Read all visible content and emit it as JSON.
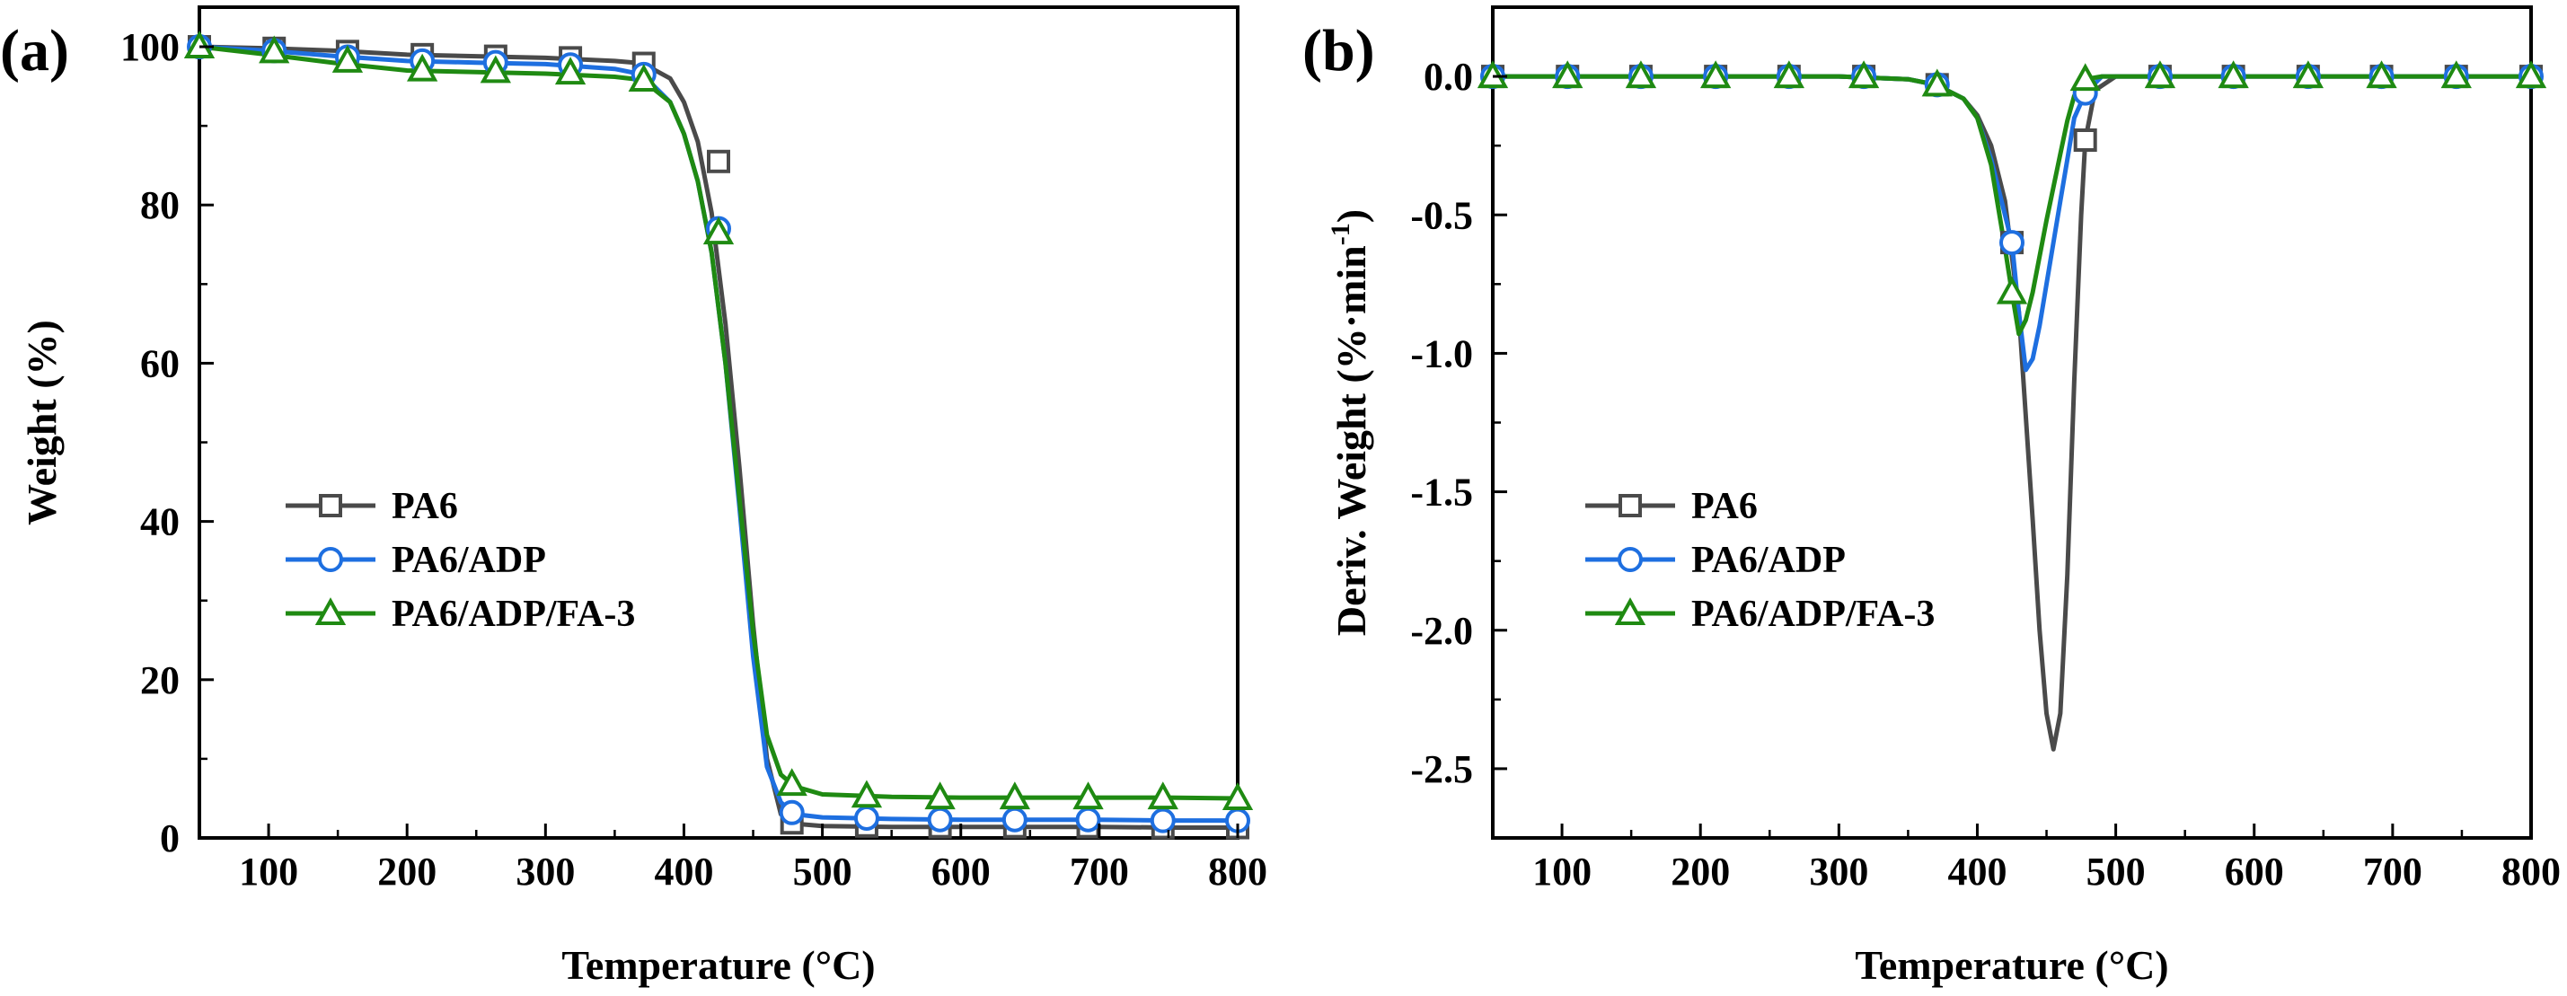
{
  "colors": {
    "PA6": "#4a4a4a",
    "PA6/ADP": "#1e6fe0",
    "PA6/ADP/FA-3": "#1f8a12"
  },
  "chart_data": [
    {
      "type": "line",
      "panel_label": "(a)",
      "title": "",
      "xlabel": "Temperature (°C)",
      "ylabel": "Weight (%)",
      "xlim": [
        50,
        800
      ],
      "ylim": [
        0,
        105
      ],
      "xticks": [
        100,
        200,
        300,
        400,
        500,
        600,
        700,
        800
      ],
      "yticks": [
        0,
        20,
        40,
        60,
        80,
        100
      ],
      "xtick_labels": [
        "100",
        "200",
        "300",
        "400",
        "500",
        "600",
        "700",
        "800"
      ],
      "ytick_labels": [
        "0",
        "20",
        "40",
        "60",
        "80",
        "100"
      ],
      "legend_position": "middle-left",
      "series": [
        {
          "name": "PA6",
          "color": "#4a4a4a",
          "marker": "square",
          "x": [
            50,
            100,
            150,
            200,
            250,
            300,
            350,
            370,
            390,
            400,
            410,
            420,
            430,
            440,
            450,
            460,
            470,
            480,
            500,
            550,
            600,
            650,
            700,
            750,
            800
          ],
          "y": [
            100,
            99.8,
            99.5,
            99,
            98.8,
            98.6,
            98.2,
            97.9,
            96,
            93,
            88,
            79,
            65,
            47,
            27,
            10,
            3,
            1.8,
            1.5,
            1.4,
            1.4,
            1.4,
            1.4,
            1.3,
            1.3
          ],
          "marker_x": [
            50,
            104,
            157,
            211,
            264,
            318,
            371,
            425,
            478,
            532,
            585,
            639,
            692,
            746,
            800
          ],
          "marker_y": [
            100,
            99.8,
            99.4,
            99,
            98.8,
            98.6,
            97.9,
            85.5,
            1.9,
            1.5,
            1.4,
            1.4,
            1.4,
            1.3,
            1.3
          ]
        },
        {
          "name": "PA6/ADP",
          "color": "#1e6fe0",
          "marker": "circle",
          "x": [
            50,
            100,
            150,
            200,
            250,
            300,
            350,
            370,
            390,
            400,
            410,
            420,
            430,
            440,
            450,
            460,
            470,
            480,
            500,
            550,
            600,
            650,
            700,
            750,
            800
          ],
          "y": [
            100,
            99.5,
            98.8,
            98.2,
            98,
            97.8,
            97.2,
            96.5,
            93,
            89,
            83,
            74,
            60,
            42,
            23,
            9,
            4.5,
            3,
            2.6,
            2.4,
            2.3,
            2.3,
            2.3,
            2.2,
            2.2
          ],
          "marker_x": [
            50,
            104,
            157,
            211,
            264,
            318,
            371,
            425,
            478,
            532,
            585,
            639,
            692,
            746,
            800
          ],
          "marker_y": [
            100,
            99.5,
            98.7,
            98.2,
            98,
            97.7,
            96.5,
            77,
            3.2,
            2.5,
            2.3,
            2.3,
            2.3,
            2.2,
            2.2
          ]
        },
        {
          "name": "PA6/ADP/FA-3",
          "color": "#1f8a12",
          "marker": "triangle",
          "x": [
            50,
            100,
            150,
            200,
            250,
            300,
            350,
            370,
            390,
            400,
            410,
            420,
            430,
            440,
            450,
            460,
            470,
            480,
            500,
            550,
            600,
            650,
            700,
            750,
            800
          ],
          "y": [
            100,
            99,
            97.9,
            97,
            96.8,
            96.6,
            96.2,
            95.8,
            93,
            89,
            83,
            74,
            60,
            43,
            26,
            13,
            8,
            6.5,
            5.5,
            5.2,
            5.1,
            5.1,
            5.1,
            5.1,
            5
          ],
          "marker_x": [
            50,
            104,
            157,
            211,
            264,
            318,
            371,
            425,
            478,
            532,
            585,
            639,
            692,
            746,
            800
          ],
          "marker_y": [
            100,
            99.4,
            98.2,
            97.1,
            96.9,
            96.7,
            95.8,
            76.5,
            6.8,
            5.3,
            5.1,
            5.1,
            5.1,
            5.1,
            5
          ]
        }
      ]
    },
    {
      "type": "line",
      "panel_label": "(b)",
      "title": "",
      "xlabel": "Temperature (°C)",
      "ylabel": "Deriv. Weight (%·min",
      "ylabel_superscript": "-1",
      "ylabel_suffix": ")",
      "xlim": [
        50,
        800
      ],
      "ylim": [
        -2.75,
        0.25
      ],
      "xticks": [
        100,
        200,
        300,
        400,
        500,
        600,
        700,
        800
      ],
      "yticks": [
        0,
        -0.5,
        -1,
        -1.5,
        -2,
        -2.5
      ],
      "xtick_labels": [
        "100",
        "200",
        "300",
        "400",
        "500",
        "600",
        "700",
        "800"
      ],
      "ytick_labels": [
        "0.0",
        "-0.5",
        "-1.0",
        "-1.5",
        "-2.0",
        "-2.5"
      ],
      "legend_position": "middle-left",
      "series": [
        {
          "name": "PA6",
          "color": "#4a4a4a",
          "marker": "square",
          "x": [
            50,
            100,
            150,
            200,
            250,
            300,
            350,
            370,
            390,
            400,
            410,
            420,
            430,
            440,
            445,
            450,
            455,
            460,
            465,
            470,
            475,
            478,
            485,
            500,
            550,
            600,
            650,
            700,
            750,
            800
          ],
          "y": [
            0,
            0,
            0,
            0,
            0,
            0,
            -0.01,
            -0.03,
            -0.08,
            -0.14,
            -0.25,
            -0.45,
            -0.85,
            -1.6,
            -2.0,
            -2.3,
            -2.43,
            -2.3,
            -1.8,
            -1.1,
            -0.5,
            -0.23,
            -0.05,
            0,
            0,
            0,
            0,
            0,
            0,
            0
          ],
          "marker_x": [
            50,
            104,
            157,
            211,
            264,
            318,
            371,
            425,
            478,
            532,
            585,
            639,
            692,
            746,
            800
          ],
          "marker_y": [
            0,
            0,
            0,
            0,
            0,
            0,
            -0.03,
            -0.6,
            -0.23,
            0,
            0,
            0,
            0,
            0,
            0
          ]
        },
        {
          "name": "PA6/ADP",
          "color": "#1e6fe0",
          "marker": "circle",
          "x": [
            50,
            100,
            150,
            200,
            250,
            300,
            350,
            370,
            390,
            400,
            410,
            420,
            425,
            430,
            435,
            440,
            445,
            450,
            455,
            460,
            465,
            470,
            478,
            490,
            500,
            550,
            600,
            650,
            700,
            750,
            800
          ],
          "y": [
            0,
            0,
            0,
            0,
            0,
            0,
            -0.01,
            -0.03,
            -0.08,
            -0.15,
            -0.3,
            -0.5,
            -0.6,
            -0.85,
            -1.06,
            -1.02,
            -0.9,
            -0.75,
            -0.6,
            -0.45,
            -0.3,
            -0.15,
            -0.06,
            0,
            0,
            0,
            0,
            0,
            0,
            0,
            0
          ],
          "marker_x": [
            50,
            104,
            157,
            211,
            264,
            318,
            371,
            425,
            478,
            532,
            585,
            639,
            692,
            746,
            800
          ],
          "marker_y": [
            0,
            0,
            0,
            0,
            0,
            0,
            -0.03,
            -0.6,
            -0.06,
            0,
            0,
            0,
            0,
            0,
            0
          ]
        },
        {
          "name": "PA6/ADP/FA-3",
          "color": "#1f8a12",
          "marker": "triangle",
          "x": [
            50,
            100,
            150,
            200,
            250,
            300,
            350,
            370,
            390,
            400,
            410,
            420,
            425,
            430,
            435,
            440,
            445,
            450,
            455,
            460,
            465,
            470,
            478,
            490,
            500,
            550,
            600,
            650,
            700,
            750,
            800
          ],
          "y": [
            0,
            0,
            0,
            0,
            0,
            0,
            -0.01,
            -0.03,
            -0.08,
            -0.15,
            -0.32,
            -0.62,
            -0.78,
            -0.93,
            -0.88,
            -0.78,
            -0.65,
            -0.52,
            -0.4,
            -0.28,
            -0.16,
            -0.07,
            -0.01,
            0,
            0,
            0,
            0,
            0,
            0,
            0,
            0
          ],
          "marker_x": [
            50,
            104,
            157,
            211,
            264,
            318,
            371,
            425,
            478,
            532,
            585,
            639,
            692,
            746,
            800
          ],
          "marker_y": [
            0,
            0,
            0,
            0,
            0,
            0,
            -0.03,
            -0.78,
            -0.01,
            0,
            0,
            0,
            0,
            0,
            0
          ]
        }
      ]
    }
  ]
}
